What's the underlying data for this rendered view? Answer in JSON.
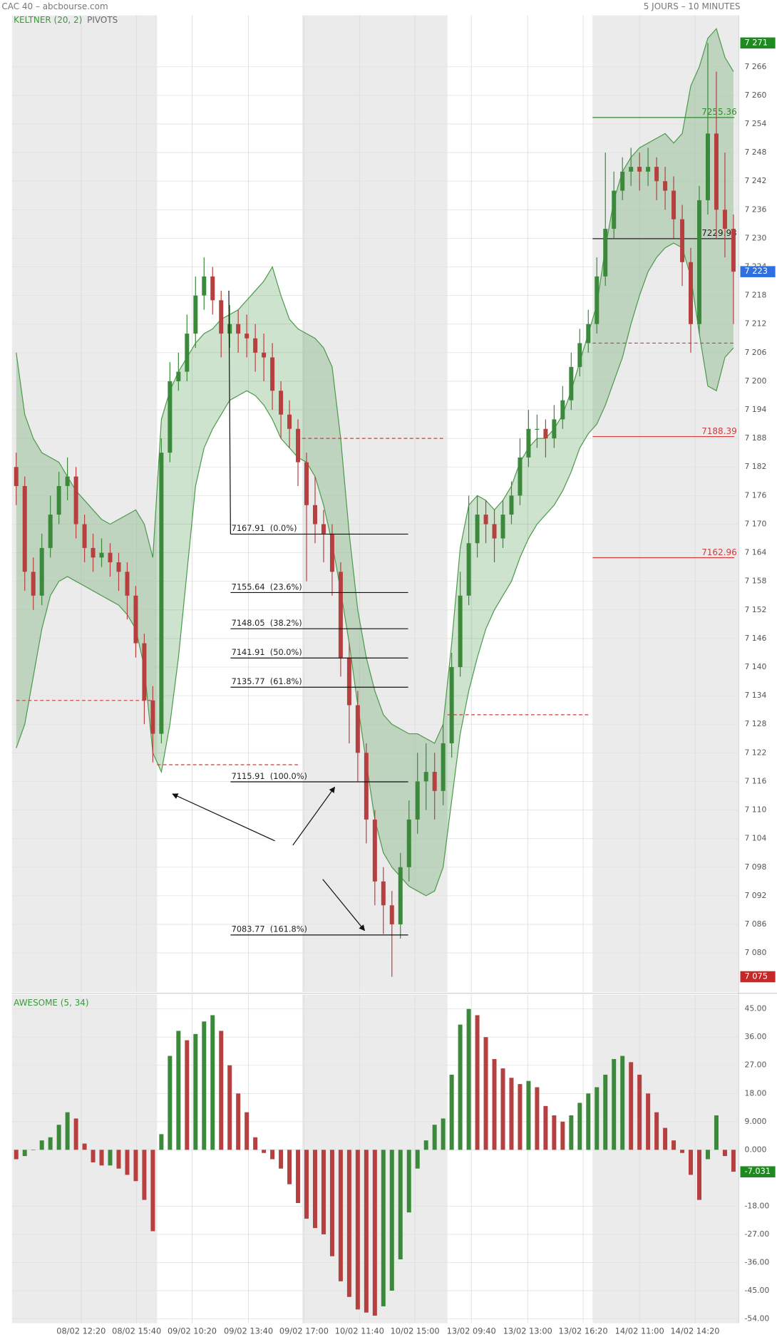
{
  "chart_data": [
    {
      "type": "candlestick",
      "title": "CAC 40 – abcbourse.com",
      "subtitle": "5 JOURS – 10 MINUTES",
      "legend": [
        "KELTNER (20, 2)",
        "PIVOTS"
      ],
      "up_color": "#3b8a3b",
      "down_color": "#b5403f",
      "band_color": "#4a9a4a",
      "xlim": [
        -0.5,
        84.6
      ],
      "ylim": [
        7071.8,
        7276.8
      ],
      "yticks": [
        {
          "value": 7080,
          "label": "7 080"
        },
        {
          "value": 7086,
          "label": "7 086"
        },
        {
          "value": 7092,
          "label": "7 092"
        },
        {
          "value": 7098,
          "label": "7 098"
        },
        {
          "value": 7104,
          "label": "7 104"
        },
        {
          "value": 7110,
          "label": "7 110"
        },
        {
          "value": 7116,
          "label": "7 116"
        },
        {
          "value": 7122,
          "label": "7 122"
        },
        {
          "value": 7128,
          "label": "7 128"
        },
        {
          "value": 7134,
          "label": "7 134"
        },
        {
          "value": 7140,
          "label": "7 140"
        },
        {
          "value": 7146,
          "label": "7 146"
        },
        {
          "value": 7152,
          "label": "7 152"
        },
        {
          "value": 7158,
          "label": "7 158"
        },
        {
          "value": 7164,
          "label": "7 164"
        },
        {
          "value": 7170,
          "label": "7 170"
        },
        {
          "value": 7176,
          "label": "7 176"
        },
        {
          "value": 7182,
          "label": "7 182"
        },
        {
          "value": 7188,
          "label": "7 188"
        },
        {
          "value": 7194,
          "label": "7 194"
        },
        {
          "value": 7200,
          "label": "7 200"
        },
        {
          "value": 7206,
          "label": "7 206"
        },
        {
          "value": 7212,
          "label": "7 212"
        },
        {
          "value": 7218,
          "label": "7 218"
        },
        {
          "value": 7224,
          "label": "7 224"
        },
        {
          "value": 7230,
          "label": "7 230"
        },
        {
          "value": 7236,
          "label": "7 236"
        },
        {
          "value": 7242,
          "label": "7 242"
        },
        {
          "value": 7248,
          "label": "7 248"
        },
        {
          "value": 7254,
          "label": "7 254"
        },
        {
          "value": 7260,
          "label": "7 260"
        },
        {
          "value": 7266,
          "label": "7 266"
        }
      ],
      "open": [
        7182,
        7178,
        7160,
        7155,
        7165,
        7172,
        7178,
        7180,
        7170,
        7165,
        7163,
        7164,
        7162,
        7160,
        7155,
        7145,
        7133,
        7126,
        7185,
        7200,
        7202,
        7210,
        7218,
        7222,
        7217,
        7210,
        7212,
        7210,
        7209,
        7206,
        7205,
        7198,
        7193,
        7190,
        7183,
        7174,
        7170,
        7168,
        7160,
        7142,
        7132,
        7122,
        7108,
        7095,
        7090,
        7086,
        7098,
        7108,
        7116,
        7118,
        7114,
        7124,
        7140,
        7155,
        7166,
        7172,
        7170,
        7167,
        7172,
        7176,
        7184,
        7190,
        7190,
        7188,
        7192,
        7196,
        7203,
        7208,
        7212,
        7222,
        7232,
        7240,
        7244,
        7245,
        7244,
        7245,
        7242,
        7240,
        7234,
        7225,
        7212,
        7238,
        7252,
        7236,
        7232
      ],
      "high": [
        7185,
        7180,
        7163,
        7168,
        7176,
        7181,
        7184,
        7182,
        7172,
        7168,
        7167,
        7166,
        7164,
        7162,
        7157,
        7147,
        7136,
        7188,
        7204,
        7206,
        7214,
        7222,
        7226,
        7224,
        7219,
        7216,
        7215,
        7214,
        7212,
        7210,
        7208,
        7200,
        7196,
        7192,
        7185,
        7180,
        7173,
        7170,
        7162,
        7145,
        7135,
        7124,
        7110,
        7098,
        7093,
        7101,
        7112,
        7122,
        7124,
        7122,
        7128,
        7143,
        7160,
        7176,
        7176,
        7175,
        7173,
        7175,
        7179,
        7188,
        7194,
        7193,
        7192,
        7195,
        7199,
        7206,
        7211,
        7215,
        7226,
        7248,
        7244,
        7247,
        7249,
        7248,
        7249,
        7247,
        7245,
        7243,
        7237,
        7228,
        7241,
        7271,
        7265,
        7248,
        7235
      ],
      "low": [
        7174,
        7156,
        7152,
        7153,
        7163,
        7170,
        7175,
        7167,
        7162,
        7160,
        7161,
        7159,
        7156,
        7150,
        7142,
        7128,
        7120,
        7124,
        7183,
        7198,
        7200,
        7207,
        7215,
        7214,
        7205,
        7207,
        7206,
        7205,
        7202,
        7200,
        7194,
        7188,
        7186,
        7178,
        7158,
        7166,
        7162,
        7155,
        7138,
        7124,
        7116,
        7103,
        7090,
        7084,
        7075,
        7083,
        7095,
        7105,
        7110,
        7108,
        7111,
        7121,
        7138,
        7153,
        7163,
        7166,
        7162,
        7165,
        7170,
        7174,
        7182,
        7186,
        7184,
        7186,
        7190,
        7194,
        7201,
        7206,
        7210,
        7220,
        7230,
        7238,
        7241,
        7240,
        7241,
        7238,
        7236,
        7230,
        7220,
        7206,
        7210,
        7235,
        7230,
        7226,
        7212
      ],
      "close": [
        7178,
        7160,
        7155,
        7165,
        7172,
        7178,
        7180,
        7170,
        7165,
        7163,
        7164,
        7162,
        7160,
        7155,
        7145,
        7133,
        7126,
        7185,
        7200,
        7202,
        7210,
        7218,
        7222,
        7217,
        7210,
        7212,
        7210,
        7209,
        7206,
        7205,
        7198,
        7193,
        7190,
        7183,
        7174,
        7170,
        7168,
        7160,
        7142,
        7132,
        7122,
        7108,
        7095,
        7090,
        7086,
        7098,
        7108,
        7116,
        7118,
        7114,
        7124,
        7140,
        7155,
        7166,
        7172,
        7170,
        7167,
        7172,
        7176,
        7184,
        7190,
        7190,
        7188,
        7192,
        7196,
        7203,
        7208,
        7212,
        7222,
        7232,
        7240,
        7244,
        7245,
        7244,
        7245,
        7242,
        7240,
        7234,
        7225,
        7212,
        7238,
        7252,
        7236,
        7232,
        7223
      ],
      "keltner_upper": [
        7206,
        7193,
        7188,
        7185,
        7184,
        7183,
        7180,
        7177,
        7175,
        7173,
        7171,
        7170,
        7171,
        7172,
        7173,
        7170,
        7163,
        7192,
        7198,
        7202,
        7205,
        7208,
        7210,
        7211,
        7213,
        7214,
        7215,
        7217,
        7219,
        7221,
        7224,
        7218,
        7213,
        7211,
        7210,
        7209,
        7207,
        7203,
        7188,
        7168,
        7152,
        7142,
        7135,
        7130,
        7128,
        7127,
        7126,
        7126,
        7125,
        7124,
        7128,
        7145,
        7165,
        7174,
        7176,
        7175,
        7173,
        7175,
        7178,
        7183,
        7186,
        7188,
        7188,
        7190,
        7193,
        7198,
        7204,
        7210,
        7216,
        7228,
        7238,
        7244,
        7247,
        7249,
        7250,
        7251,
        7252,
        7250,
        7252,
        7262,
        7266,
        7272,
        7274,
        7268,
        7265
      ],
      "keltner_lower": [
        7123,
        7128,
        7138,
        7148,
        7155,
        7158,
        7159,
        7158,
        7157,
        7156,
        7155,
        7154,
        7153,
        7151,
        7148,
        7140,
        7122,
        7118,
        7128,
        7142,
        7160,
        7178,
        7186,
        7190,
        7193,
        7196,
        7197,
        7198,
        7197,
        7195,
        7192,
        7188,
        7186,
        7184,
        7183,
        7180,
        7174,
        7166,
        7156,
        7145,
        7132,
        7120,
        7108,
        7101,
        7098,
        7096,
        7094,
        7093,
        7092,
        7093,
        7098,
        7112,
        7126,
        7135,
        7142,
        7148,
        7152,
        7155,
        7158,
        7163,
        7167,
        7170,
        7172,
        7174,
        7177,
        7181,
        7186,
        7189,
        7191,
        7195,
        7200,
        7205,
        7212,
        7218,
        7223,
        7226,
        7228,
        7229,
        7228,
        7222,
        7210,
        7199,
        7198,
        7205,
        7207
      ],
      "pivots": [
        [
          {
            "value": 7133,
            "color": "#d23b3b",
            "dashed": true
          }
        ],
        [
          {
            "value": 7119.5,
            "color": "#d23b3b",
            "dashed": true
          }
        ],
        [
          {
            "value": 7188,
            "color": "#d23b3b",
            "dashed": true
          }
        ],
        [
          {
            "value": 7130,
            "color": "#d23b3b",
            "dashed": true
          }
        ],
        [
          {
            "value": 7255.36,
            "label": "7255.36",
            "color": "#2e8b2e",
            "dashed": false
          },
          {
            "value": 7229.93,
            "label": "7229.93",
            "color": "#222222",
            "dashed": false
          },
          {
            "value": 7208,
            "color": "#d23b3b",
            "dashed": true
          },
          {
            "value": 7188.39,
            "label": "7188.39",
            "color": "#d23b3b",
            "dashed": false
          },
          {
            "value": 7162.96,
            "label": "7162.96",
            "color": "#d23b3b",
            "dashed": false
          }
        ]
      ],
      "fibonacci": {
        "trend_high": 7219,
        "levels": [
          {
            "value": 7167.91,
            "label": "7167.91  (0.0%)"
          },
          {
            "value": 7155.64,
            "label": "7155.64  (23.6%)"
          },
          {
            "value": 7148.05,
            "label": "7148.05  (38.2%)"
          },
          {
            "value": 7141.91,
            "label": "7141.91  (50.0%)"
          },
          {
            "value": 7135.77,
            "label": "7135.77  (61.8%)"
          },
          {
            "value": 7115.91,
            "label": "7115.91  (100.0%)"
          },
          {
            "value": 7083.77,
            "label": "7083.77  (161.8%)"
          }
        ]
      },
      "tags": [
        {
          "value": 7271,
          "label": "7 271",
          "color": "#1f8a1f"
        },
        {
          "value": 7223,
          "label": "7 223",
          "color": "#2f6fe0"
        },
        {
          "value": 7075,
          "label": "7 075",
          "color": "#c62828"
        }
      ]
    },
    {
      "type": "bar",
      "title": "AWESOME (5, 34)",
      "up_color": "#3b8a3b",
      "down_color": "#b5403f",
      "xlim": [
        -0.5,
        84.6
      ],
      "ylim": [
        -55.4,
        49.6
      ],
      "yticks": [
        {
          "value": 45,
          "label": "45.00"
        },
        {
          "value": 36,
          "label": "36.00"
        },
        {
          "value": 27,
          "label": "27.00"
        },
        {
          "value": 18,
          "label": "18.00"
        },
        {
          "value": 9,
          "label": "9.000"
        },
        {
          "value": 0,
          "label": "0.000"
        },
        {
          "value": -18,
          "label": "-18.00"
        },
        {
          "value": -27,
          "label": "-27.00"
        },
        {
          "value": -36,
          "label": "-36.00"
        },
        {
          "value": -45,
          "label": "-45.00"
        },
        {
          "value": -54,
          "label": "-54.00"
        }
      ],
      "xticks": [
        {
          "value": 7.6,
          "label": "08/02 12:20"
        },
        {
          "value": 14.1,
          "label": "08/02 15:40"
        },
        {
          "value": 20.6,
          "label": "09/02 10:20"
        },
        {
          "value": 27.2,
          "label": "09/02 13:40"
        },
        {
          "value": 33.7,
          "label": "09/02 17:00"
        },
        {
          "value": 40.2,
          "label": "10/02 11:40"
        },
        {
          "value": 46.7,
          "label": "10/02 15:00"
        },
        {
          "value": 53.3,
          "label": "13/02 09:40"
        },
        {
          "value": 59.9,
          "label": "13/02 13:00"
        },
        {
          "value": 66.4,
          "label": "13/02 16:20"
        },
        {
          "value": 73,
          "label": "14/02 11:00"
        },
        {
          "value": 79.5,
          "label": "14/02 14:20"
        }
      ],
      "values": [
        -3,
        -2,
        0,
        3,
        4,
        8,
        12,
        10,
        2,
        -4,
        -5,
        -5,
        -6,
        -8,
        -10,
        -16,
        -26,
        5,
        30,
        38,
        35,
        37,
        41,
        43,
        38,
        27,
        18,
        12,
        4,
        -1,
        -3,
        -6,
        -11,
        -17,
        -22,
        -25,
        -27,
        -34,
        -42,
        -47,
        -51,
        -52,
        -53,
        -50,
        -45,
        -35,
        -20,
        -6,
        3,
        8,
        10,
        24,
        40,
        45,
        43,
        36,
        29,
        26,
        23,
        21,
        22,
        20,
        14,
        11,
        9,
        11,
        15,
        18,
        20,
        24,
        29,
        30,
        28,
        24,
        18,
        12,
        7,
        3,
        -1,
        -8,
        -16,
        -3,
        11,
        -2,
        -7
      ],
      "tags": [
        {
          "value": -7.031,
          "label": "-7.031",
          "color": "#1f8a1f"
        }
      ]
    }
  ]
}
